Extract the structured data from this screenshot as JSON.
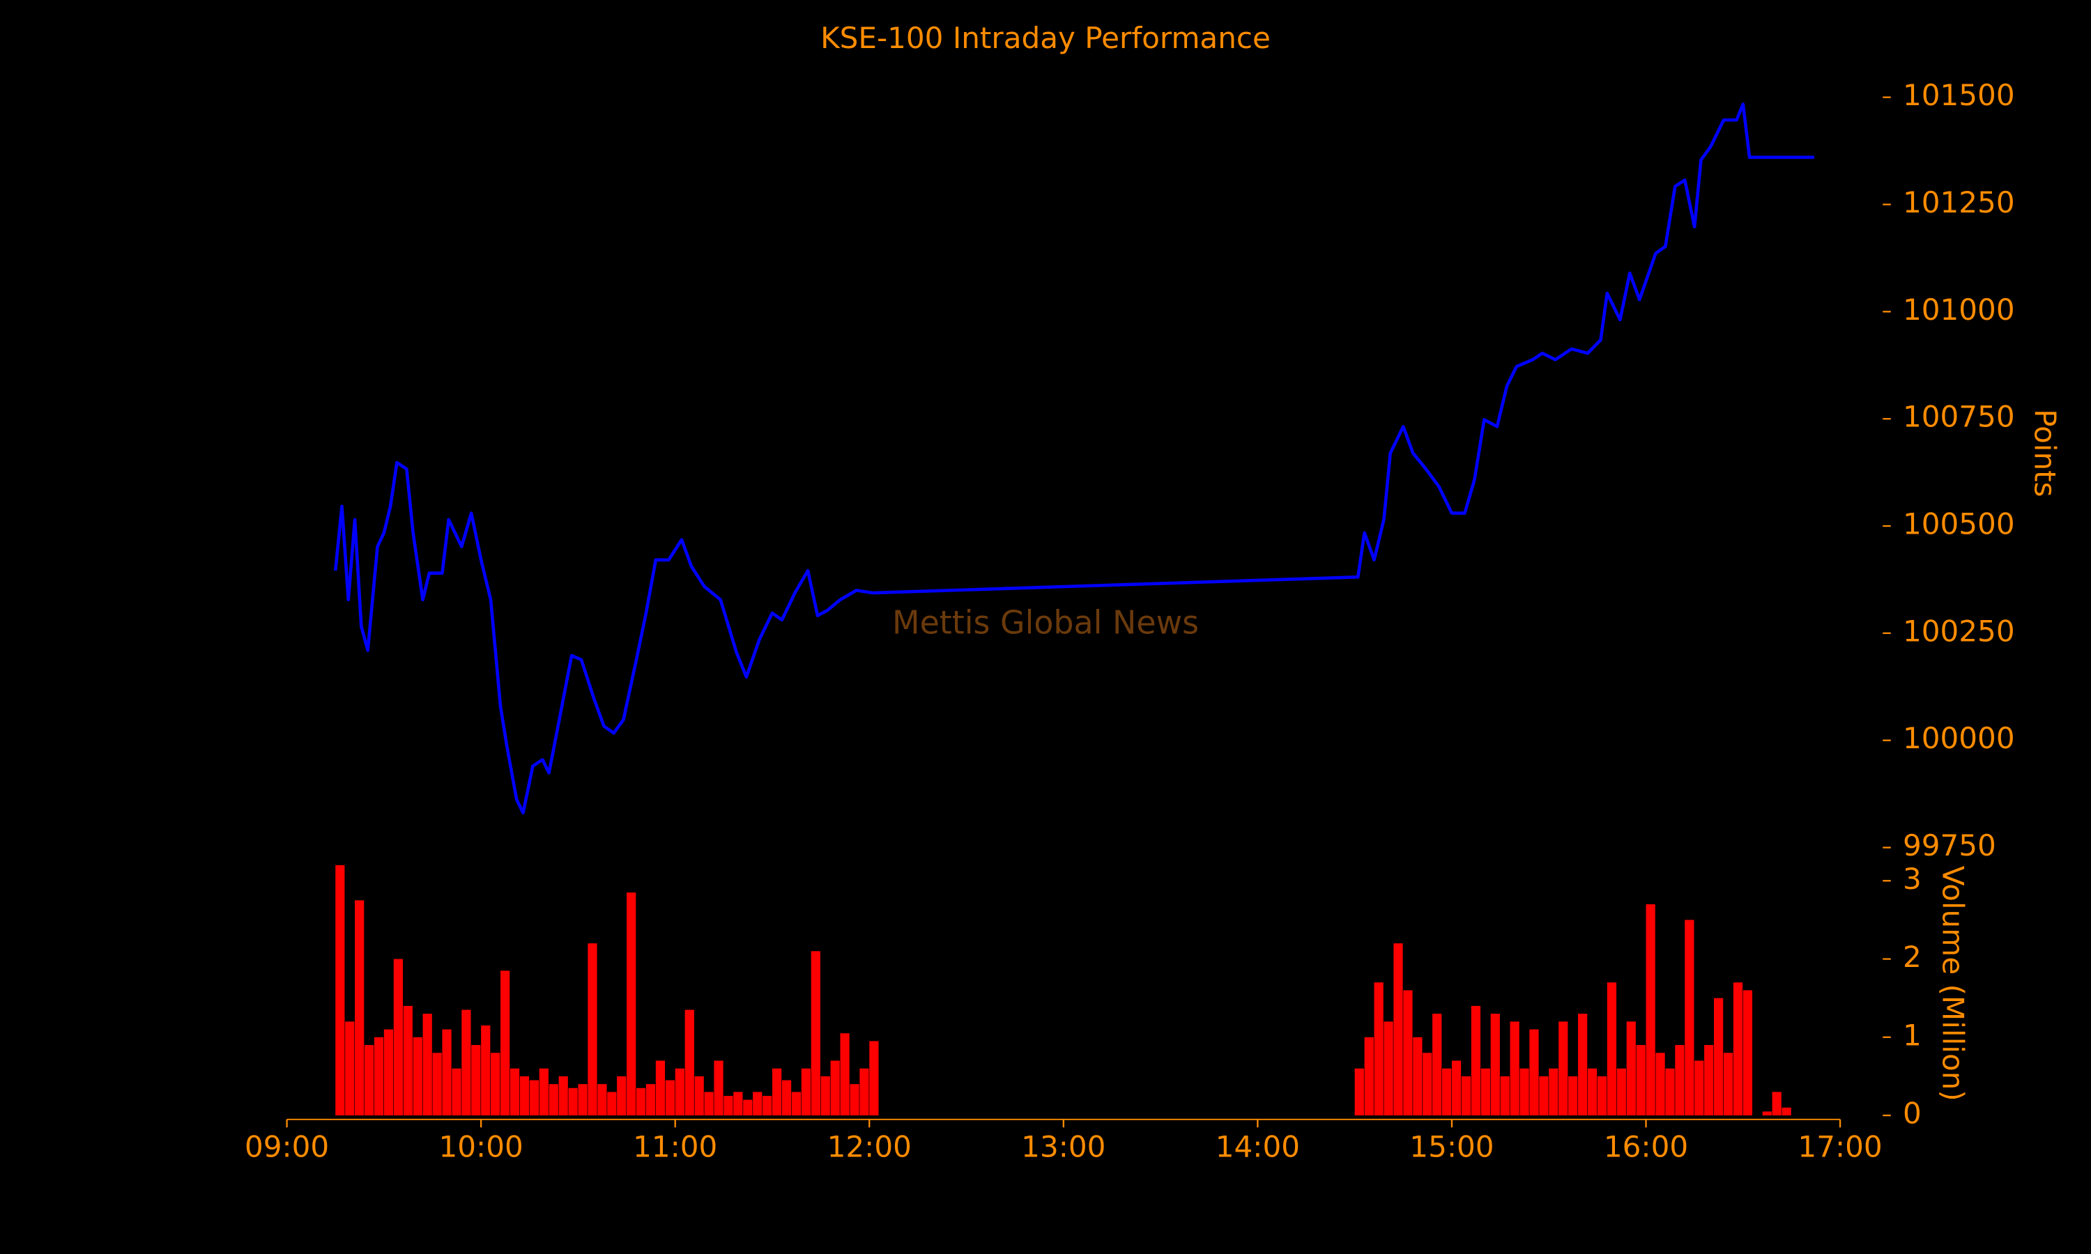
{
  "chart_data": {
    "type": "line",
    "title": "KSE-100 Intraday Performance",
    "ylabel": "Points",
    "y2label": "Volume (Million)",
    "annotation": "Mettis Global News",
    "text_color": "#ff8c00",
    "annotation_color": "#6b3a0c",
    "background": "#000000",
    "xlim": [
      "09:00",
      "17:00"
    ],
    "xticks": [
      "09:00",
      "10:00",
      "11:00",
      "12:00",
      "13:00",
      "14:00",
      "15:00",
      "16:00",
      "17:00"
    ],
    "ylim": [
      99750,
      101500
    ],
    "yticks": [
      99750,
      100000,
      100250,
      100500,
      100750,
      101000,
      101250,
      101500
    ],
    "y2lim": [
      0,
      3.2
    ],
    "y2ticks": [
      0,
      1,
      2,
      3
    ],
    "series": [
      {
        "type": "line",
        "color": "#0000ff",
        "x": [
          "09:15",
          "09:17",
          "09:19",
          "09:21",
          "09:23",
          "09:25",
          "09:28",
          "09:30",
          "09:32",
          "09:34",
          "09:37",
          "09:39",
          "09:42",
          "09:44",
          "09:48",
          "09:50",
          "09:54",
          "09:57",
          "10:00",
          "10:03",
          "10:06",
          "10:08",
          "10:11",
          "10:13",
          "10:16",
          "10:19",
          "10:21",
          "10:25",
          "10:28",
          "10:31",
          "10:35",
          "10:38",
          "10:41",
          "10:44",
          "10:48",
          "10:51",
          "10:54",
          "10:58",
          "11:02",
          "11:05",
          "11:09",
          "11:14",
          "11:19",
          "11:22",
          "11:26",
          "11:30",
          "11:33",
          "11:37",
          "11:41",
          "11:44",
          "11:47",
          "11:51",
          "11:56",
          "12:01",
          "14:31",
          "14:33",
          "14:36",
          "14:39",
          "14:41",
          "14:45",
          "14:48",
          "14:52",
          "14:56",
          "15:00",
          "15:04",
          "15:07",
          "15:10",
          "15:14",
          "15:17",
          "15:20",
          "15:25",
          "15:28",
          "15:32",
          "15:37",
          "15:42",
          "15:46",
          "15:48",
          "15:52",
          "15:55",
          "15:58",
          "16:03",
          "16:06",
          "16:09",
          "16:12",
          "16:15",
          "16:17",
          "16:20",
          "16:24",
          "16:28",
          "16:30",
          "16:32",
          "16:52"
        ],
        "values": [
          100396,
          100546,
          100328,
          100515,
          100266,
          100210,
          100452,
          100484,
          100546,
          100648,
          100633,
          100484,
          100328,
          100390,
          100390,
          100515,
          100452,
          100530,
          100421,
          100328,
          100080,
          99986,
          99862,
          99831,
          99940,
          99955,
          99924,
          100080,
          100198,
          100188,
          100095,
          100033,
          100017,
          100048,
          100188,
          100297,
          100421,
          100421,
          100468,
          100406,
          100359,
          100328,
          100204,
          100148,
          100235,
          100297,
          100281,
          100344,
          100396,
          100291,
          100303,
          100328,
          100350,
          100344,
          100381,
          100484,
          100421,
          100515,
          100670,
          100732,
          100670,
          100633,
          100592,
          100530,
          100530,
          100608,
          100748,
          100732,
          100826,
          100872,
          100888,
          100903,
          100888,
          100913,
          100903,
          100934,
          101043,
          100981,
          101090,
          101028,
          101136,
          101152,
          101292,
          101307,
          101198,
          101354,
          101385,
          101447,
          101447,
          101484,
          101360,
          101360
        ]
      },
      {
        "type": "bar",
        "axis": "y2",
        "color": "#ff0000",
        "x": [
          "09:15",
          "09:18",
          "09:21",
          "09:24",
          "09:27",
          "09:30",
          "09:33",
          "09:36",
          "09:39",
          "09:42",
          "09:45",
          "09:48",
          "09:51",
          "09:54",
          "09:57",
          "10:00",
          "10:03",
          "10:06",
          "10:09",
          "10:12",
          "10:15",
          "10:18",
          "10:21",
          "10:24",
          "10:27",
          "10:30",
          "10:33",
          "10:36",
          "10:39",
          "10:42",
          "10:45",
          "10:48",
          "10:51",
          "10:54",
          "10:57",
          "11:00",
          "11:03",
          "11:06",
          "11:09",
          "11:12",
          "11:15",
          "11:18",
          "11:21",
          "11:24",
          "11:27",
          "11:30",
          "11:33",
          "11:36",
          "11:39",
          "11:42",
          "11:45",
          "11:48",
          "11:51",
          "11:54",
          "11:57",
          "12:00",
          "14:30",
          "14:33",
          "14:36",
          "14:39",
          "14:42",
          "14:45",
          "14:48",
          "14:51",
          "14:54",
          "14:57",
          "15:00",
          "15:03",
          "15:06",
          "15:09",
          "15:12",
          "15:15",
          "15:18",
          "15:21",
          "15:24",
          "15:27",
          "15:30",
          "15:33",
          "15:36",
          "15:39",
          "15:42",
          "15:45",
          "15:48",
          "15:51",
          "15:54",
          "15:57",
          "16:00",
          "16:03",
          "16:06",
          "16:09",
          "16:12",
          "16:15",
          "16:18",
          "16:21",
          "16:24",
          "16:27",
          "16:30",
          "16:36",
          "16:39",
          "16:42"
        ],
        "values": [
          3.2,
          1.2,
          2.75,
          0.9,
          1.0,
          1.1,
          2.0,
          1.4,
          1.0,
          1.3,
          0.8,
          1.1,
          0.6,
          1.35,
          0.9,
          1.15,
          0.8,
          1.85,
          0.6,
          0.5,
          0.45,
          0.6,
          0.4,
          0.5,
          0.35,
          0.4,
          2.2,
          0.4,
          0.3,
          0.5,
          2.85,
          0.35,
          0.4,
          0.7,
          0.45,
          0.6,
          1.35,
          0.5,
          0.3,
          0.7,
          0.25,
          0.3,
          0.2,
          0.3,
          0.25,
          0.6,
          0.45,
          0.3,
          0.6,
          2.1,
          0.5,
          0.7,
          1.05,
          0.4,
          0.6,
          0.95,
          0.6,
          1.0,
          1.7,
          1.2,
          2.2,
          1.6,
          1.0,
          0.8,
          1.3,
          0.6,
          0.7,
          0.5,
          1.4,
          0.6,
          1.3,
          0.5,
          1.2,
          0.6,
          1.1,
          0.5,
          0.6,
          1.2,
          0.5,
          1.3,
          0.6,
          0.5,
          1.7,
          0.6,
          1.2,
          0.9,
          2.7,
          0.8,
          0.6,
          0.9,
          2.5,
          0.7,
          0.9,
          1.5,
          0.8,
          1.7,
          1.6,
          0.05,
          0.3,
          0.1
        ]
      }
    ]
  }
}
